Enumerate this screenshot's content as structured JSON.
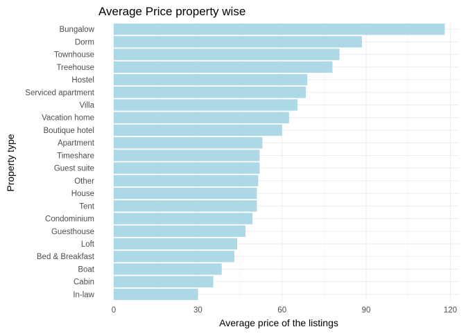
{
  "chart_data": {
    "type": "bar",
    "orientation": "horizontal",
    "title": "Average Price property wise",
    "xlabel": "Average price of the listings",
    "ylabel": "Property type",
    "xlim": [
      0,
      122
    ],
    "x_ticks": [
      0,
      30,
      60,
      90,
      120
    ],
    "grid": true,
    "bar_color": "#add8e6",
    "categories": [
      "Bungalow",
      "Dorm",
      "Townhouse",
      "Treehouse",
      "Hostel",
      "Serviced apartment",
      "Villa",
      "Vacation home",
      "Boutique hotel",
      "Apartment",
      "Timeshare",
      "Guest suite",
      "Other",
      "House",
      "Tent",
      "Condominium",
      "Guesthouse",
      "Loft",
      "Bed & Breakfast",
      "Boat",
      "Cabin",
      "In-law"
    ],
    "values": [
      118,
      88.5,
      80.5,
      78,
      69,
      68.5,
      65.5,
      62.5,
      60,
      53,
      52,
      52,
      51.5,
      51,
      51,
      49.5,
      47,
      44,
      43,
      38.5,
      35.5,
      30
    ]
  }
}
